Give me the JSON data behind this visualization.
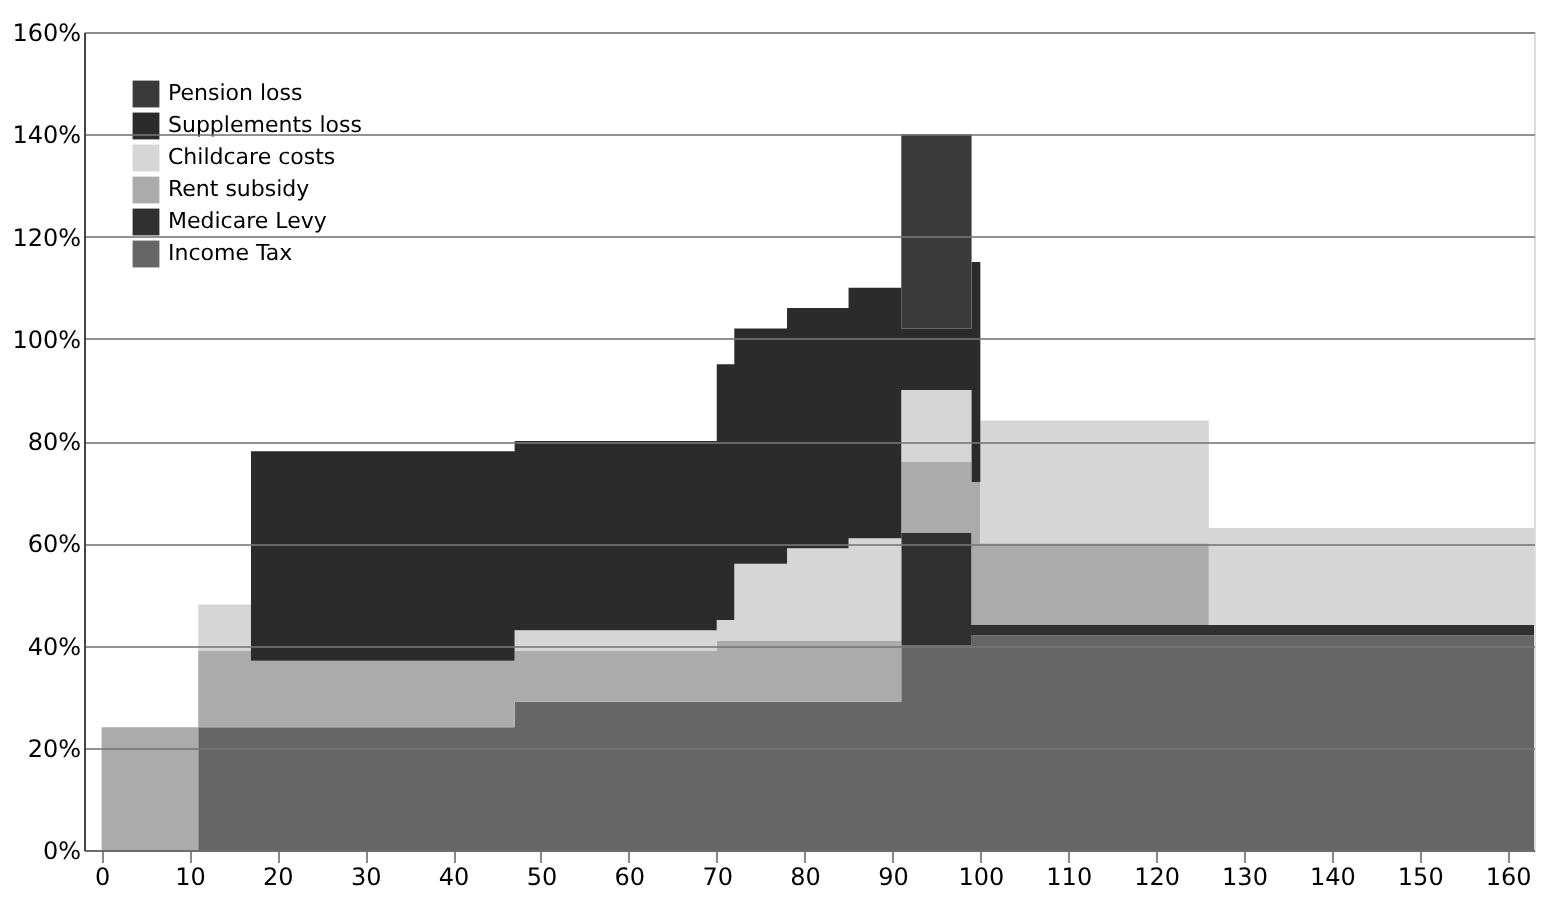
{
  "chart_data": {
    "type": "area",
    "stacked": true,
    "grid": "y",
    "legend": "top left",
    "x": [
      0,
      11,
      17,
      47,
      70,
      72,
      78,
      85,
      91,
      99,
      100,
      126,
      163
    ],
    "series": [
      {
        "name": "Income Tax",
        "color": "#666666",
        "values": [
          0,
          24,
          24,
          29,
          29,
          29,
          29,
          29,
          40,
          42,
          42,
          42,
          42
        ]
      },
      {
        "name": "Medicare Levy",
        "color": "#303030",
        "values": [
          0,
          0,
          0,
          0,
          0,
          0,
          0,
          0,
          22,
          2,
          2,
          2,
          2
        ]
      },
      {
        "name": "Rent subsidy",
        "color": "#ababab",
        "values": [
          24,
          15,
          13,
          10,
          12,
          12,
          12,
          12,
          14,
          28,
          16,
          0,
          0
        ]
      },
      {
        "name": "Childcare costs",
        "color": "#d6d6d6",
        "values": [
          0,
          9,
          0,
          4,
          4,
          15,
          18,
          20,
          14,
          0,
          24,
          19,
          19
        ]
      },
      {
        "name": "Supplements loss",
        "color": "#2b2b2b",
        "values": [
          0,
          0,
          41,
          37,
          50,
          46,
          47,
          49,
          12,
          43,
          0,
          0,
          0
        ]
      },
      {
        "name": "Pension loss",
        "color": "#3a3a3a",
        "values": [
          0,
          0,
          0,
          0,
          0,
          0,
          0,
          0,
          38,
          0,
          0,
          0,
          0
        ]
      }
    ],
    "xlim": [
      -2,
      163
    ],
    "xticks": [
      0,
      10,
      20,
      30,
      40,
      50,
      60,
      70,
      80,
      90,
      100,
      110,
      120,
      130,
      140,
      150,
      160
    ],
    "ylim": [
      0,
      160
    ],
    "yticks": [
      {
        "value": 0,
        "label": "0%"
      },
      {
        "value": 20,
        "label": "20%"
      },
      {
        "value": 40,
        "label": "40%"
      },
      {
        "value": 60,
        "label": "60%"
      },
      {
        "value": 80,
        "label": "80%"
      },
      {
        "value": 100,
        "label": "100%"
      },
      {
        "value": 120,
        "label": "120%"
      },
      {
        "value": 140,
        "label": "140%"
      },
      {
        "value": 160,
        "label": "160%"
      }
    ]
  }
}
